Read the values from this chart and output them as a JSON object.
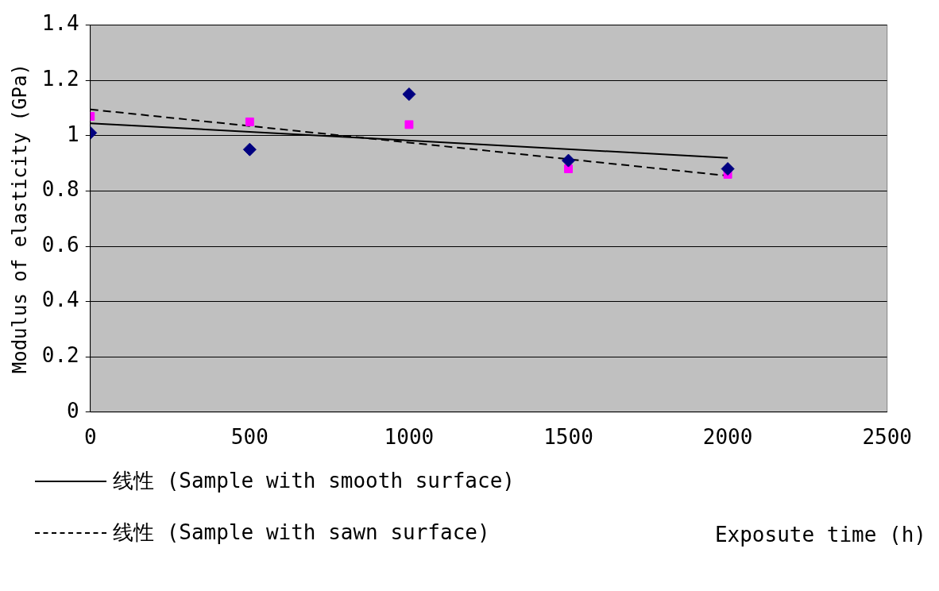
{
  "chart_data": {
    "type": "scatter",
    "xlabel": "Exposute time (h)",
    "ylabel": "Modulus of elasticity (GPa)",
    "xlim": [
      0,
      2500
    ],
    "xticks": [
      0,
      500,
      1000,
      1500,
      2000,
      2500
    ],
    "ylim": [
      0,
      1.4
    ],
    "yticks": [
      0,
      0.2,
      0.4,
      0.6,
      0.8,
      1,
      1.2,
      1.4
    ],
    "grid": "y",
    "legend": "bottom",
    "series": [
      {
        "color": "#000080",
        "marker": "diamond",
        "x": [
          0,
          500,
          1000,
          1500,
          2000
        ],
        "values": [
          1.01,
          0.95,
          1.15,
          0.91,
          0.88
        ]
      },
      {
        "color": "#ff00ff",
        "marker": "square",
        "x": [
          0,
          500,
          1000,
          1500,
          2000
        ],
        "values": [
          1.07,
          1.05,
          1.04,
          0.88,
          0.86
        ]
      },
      {
        "type": "line",
        "name": "线性 (Sample with smooth surface)",
        "color": "#000000",
        "line_style": "solid",
        "marker": "none",
        "x": [
          0,
          2000
        ],
        "values": [
          1.045,
          0.92
        ]
      },
      {
        "type": "line",
        "name": "线性 (Sample with sawn surface)",
        "color": "#000000",
        "line_style": "dashed",
        "marker": "none",
        "x": [
          0,
          2000
        ],
        "values": [
          1.095,
          0.855
        ]
      }
    ]
  }
}
